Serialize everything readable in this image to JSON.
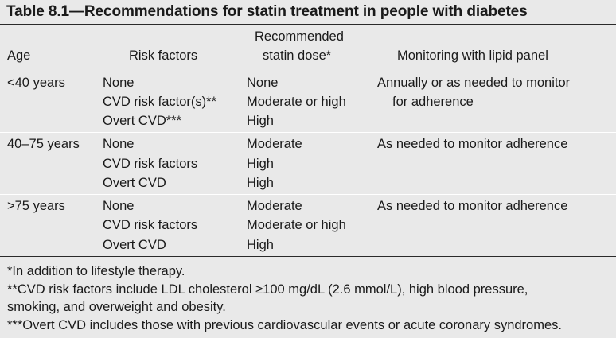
{
  "title": "Table 8.1—Recommendations for statin treatment in people with diabetes",
  "header": {
    "age": "Age",
    "risk_factors": "Risk factors",
    "statin_dose_line1": "Recommended",
    "statin_dose_line2": "statin dose*",
    "monitoring": "Monitoring with lipid panel"
  },
  "rows": [
    {
      "age": "<40 years",
      "risk_factors": [
        "None",
        "CVD risk factor(s)**",
        "Overt CVD***"
      ],
      "doses": [
        "None",
        "Moderate or high",
        "High"
      ],
      "monitoring": [
        "Annually or as needed to monitor",
        "for adherence"
      ]
    },
    {
      "age": "40–75 years",
      "risk_factors": [
        "None",
        "CVD risk factors",
        "Overt CVD"
      ],
      "doses": [
        "Moderate",
        "High",
        "High"
      ],
      "monitoring": [
        "As needed to monitor adherence"
      ]
    },
    {
      "age": ">75 years",
      "risk_factors": [
        "None",
        "CVD risk factors",
        "Overt CVD"
      ],
      "doses": [
        "Moderate",
        "Moderate or high",
        "High"
      ],
      "monitoring": [
        "As needed to monitor adherence"
      ]
    }
  ],
  "footnotes": [
    "*In addition to lifestyle therapy.",
    "**CVD risk factors include LDL cholesterol ≥100 mg/dL (2.6 mmol/L), high blood pressure,",
    "smoking, and overweight and obesity.",
    "***Overt CVD includes those with previous cardiovascular events or acute coronary syndromes."
  ]
}
